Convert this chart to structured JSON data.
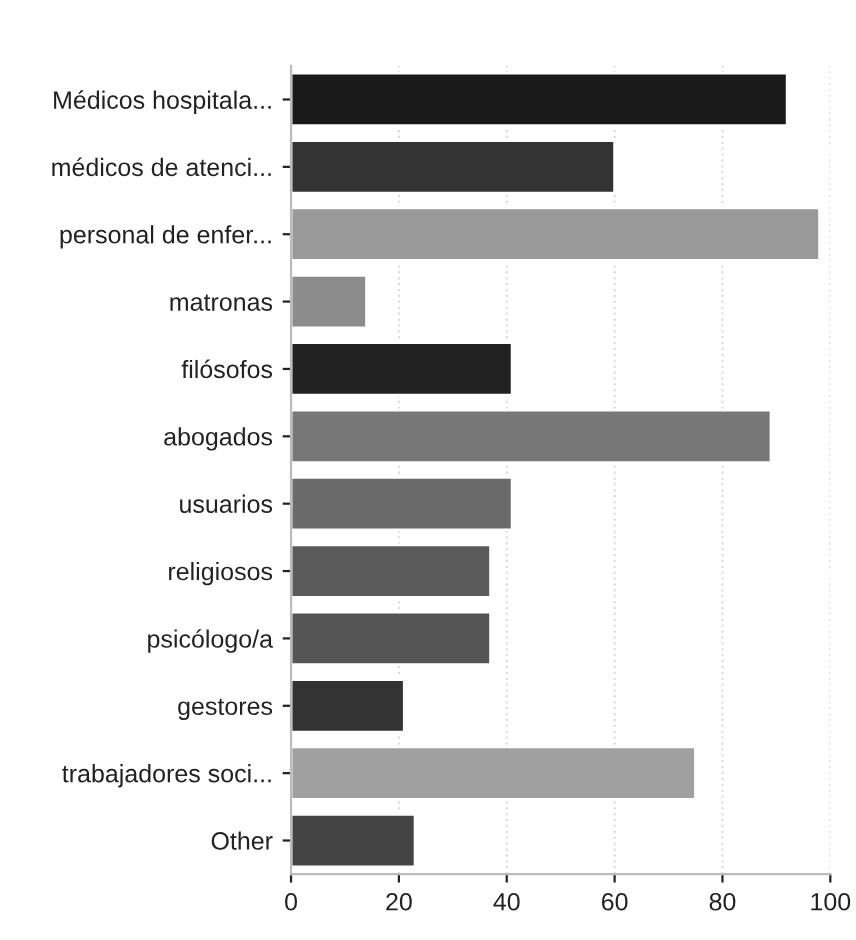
{
  "chart_data": {
    "type": "bar",
    "orientation": "horizontal",
    "categories": [
      "Médicos hospitala...",
      "médicos de atenci...",
      "personal de enfer...",
      "matronas",
      "filósofos",
      "abogados",
      "usuarios",
      "religiosos",
      "psicólogo/a",
      "gestores",
      "trabajadores soci...",
      "Other"
    ],
    "values": [
      92,
      60,
      98,
      14,
      41,
      89,
      41,
      37,
      37,
      21,
      75,
      23
    ],
    "colors": [
      "#1a1a1a",
      "#333333",
      "#999999",
      "#8c8c8c",
      "#222222",
      "#777777",
      "#6a6a6a",
      "#5a5a5a",
      "#555555",
      "#333333",
      "#a0a0a0",
      "#444444"
    ],
    "xlim": [
      0,
      100
    ],
    "xticks": [
      0,
      20,
      40,
      60,
      80,
      100
    ],
    "grid": "x"
  }
}
